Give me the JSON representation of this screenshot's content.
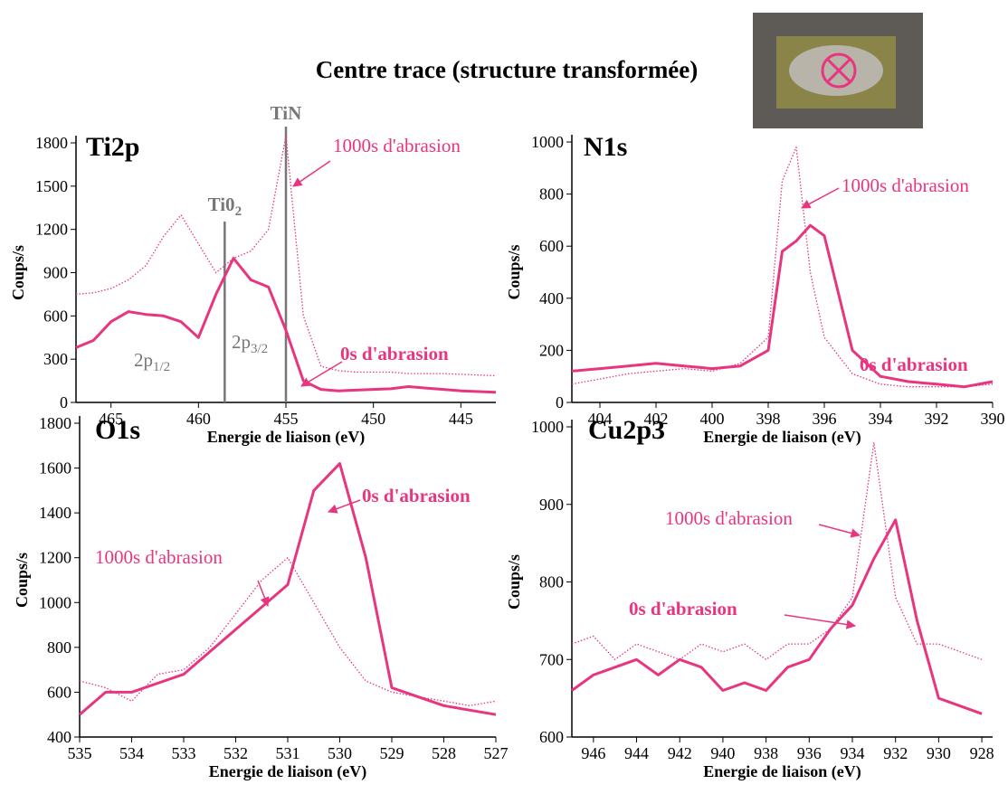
{
  "title": "Centre trace (structure transformée)",
  "chart_data": [
    {
      "type": "line",
      "title": "Ti2p",
      "xlabel": "Energie de liaison (eV)",
      "ylabel": "Coups/s",
      "x": [
        467,
        466,
        465,
        464,
        463,
        462,
        461,
        460,
        459,
        458,
        457,
        456,
        455,
        454,
        453,
        452,
        451,
        450,
        449,
        448,
        447,
        446,
        445,
        444,
        443
      ],
      "xlim": [
        467,
        443
      ],
      "ylim": [
        0,
        1800
      ],
      "xticks": [
        465,
        460,
        455,
        450,
        445
      ],
      "yticks": [
        0,
        300,
        600,
        900,
        1200,
        1500,
        1800
      ],
      "series": [
        {
          "name": "0s d'abrasion",
          "color": "#e8357f",
          "style": "solid",
          "values": [
            380,
            430,
            560,
            630,
            610,
            600,
            560,
            450,
            750,
            1000,
            850,
            800,
            500,
            150,
            90,
            80,
            85,
            90,
            95,
            110,
            100,
            90,
            80,
            75,
            70
          ]
        },
        {
          "name": "1000s d'abrasion",
          "color": "#e8357f",
          "style": "dotted",
          "values": [
            750,
            760,
            790,
            850,
            950,
            1150,
            1300,
            1100,
            900,
            1000,
            1050,
            1200,
            1850,
            600,
            250,
            220,
            210,
            210,
            210,
            200,
            200,
            200,
            195,
            190,
            185
          ]
        }
      ],
      "vlines": [
        {
          "label": "TiN",
          "x": 455
        },
        {
          "label": "Ti0",
          "sub": "2",
          "x": 458.5
        }
      ],
      "annotations": [
        {
          "text": "2p",
          "sub": "1/2"
        },
        {
          "text": "2p",
          "sub": "3/2"
        }
      ]
    },
    {
      "type": "line",
      "title": "N1s",
      "xlabel": "Energie de liaison (eV)",
      "ylabel": "Coups/s",
      "x": [
        405,
        404,
        403,
        402,
        401,
        400,
        399,
        398,
        397.5,
        397,
        396.5,
        396,
        395,
        394,
        393,
        392,
        391,
        390
      ],
      "xlim": [
        405,
        390
      ],
      "ylim": [
        0,
        1000
      ],
      "xticks": [
        404,
        402,
        400,
        398,
        396,
        394,
        392,
        390
      ],
      "yticks": [
        0,
        200,
        400,
        600,
        800,
        1000
      ],
      "series": [
        {
          "name": "0s d'abrasion",
          "color": "#e8357f",
          "style": "solid",
          "values": [
            120,
            130,
            140,
            150,
            140,
            130,
            140,
            200,
            580,
            620,
            680,
            640,
            200,
            100,
            80,
            70,
            60,
            80
          ]
        },
        {
          "name": "1000s d'abrasion",
          "color": "#e8357f",
          "style": "dotted",
          "values": [
            70,
            90,
            110,
            120,
            130,
            120,
            150,
            250,
            850,
            980,
            500,
            250,
            110,
            70,
            60,
            60,
            60,
            70
          ]
        }
      ]
    },
    {
      "type": "line",
      "title": "O1s",
      "xlabel": "Energie de liaison (eV)",
      "ylabel": "Coups/s",
      "x": [
        535,
        534.5,
        534,
        533.5,
        533,
        532.5,
        532,
        531.5,
        531,
        530.5,
        530,
        529.5,
        529,
        528.5,
        528,
        527.5,
        527
      ],
      "xlim": [
        535,
        527
      ],
      "ylim": [
        400,
        1800
      ],
      "xticks": [
        535,
        534,
        533,
        532,
        531,
        530,
        529,
        528,
        527
      ],
      "yticks": [
        400,
        600,
        800,
        1000,
        1200,
        1400,
        1600,
        1800
      ],
      "series": [
        {
          "name": "0s d'abrasion",
          "color": "#e8357f",
          "style": "solid",
          "values": [
            500,
            600,
            600,
            640,
            680,
            780,
            880,
            980,
            1080,
            1500,
            1620,
            1200,
            620,
            580,
            540,
            520,
            500
          ]
        },
        {
          "name": "1000s d'abrasion",
          "color": "#e8357f",
          "style": "dotted",
          "values": [
            650,
            620,
            560,
            680,
            700,
            800,
            950,
            1100,
            1200,
            1000,
            800,
            650,
            600,
            580,
            560,
            540,
            560
          ]
        }
      ]
    },
    {
      "type": "line",
      "title": "Cu2p3",
      "xlabel": "Energie de liaison (eV)",
      "ylabel": "Coups/s",
      "x": [
        947,
        946,
        945,
        944,
        943,
        942,
        941,
        940,
        939,
        938,
        937,
        936,
        935,
        934,
        933,
        932,
        931,
        930,
        929,
        928
      ],
      "xlim": [
        947,
        927.5
      ],
      "ylim": [
        600,
        1000
      ],
      "xticks": [
        946,
        944,
        942,
        940,
        938,
        936,
        934,
        932,
        930,
        928
      ],
      "yticks": [
        600,
        700,
        800,
        900,
        1000
      ],
      "series": [
        {
          "name": "0s d'abrasion",
          "color": "#e8357f",
          "style": "solid",
          "values": [
            660,
            680,
            690,
            700,
            680,
            700,
            690,
            660,
            670,
            660,
            690,
            700,
            740,
            770,
            830,
            880,
            750,
            650,
            640,
            630
          ]
        },
        {
          "name": "1000s d'abrasion",
          "color": "#e8357f",
          "style": "dotted",
          "values": [
            720,
            730,
            700,
            720,
            710,
            700,
            720,
            710,
            720,
            700,
            720,
            720,
            740,
            780,
            980,
            780,
            720,
            720,
            710,
            700
          ]
        }
      ]
    }
  ]
}
